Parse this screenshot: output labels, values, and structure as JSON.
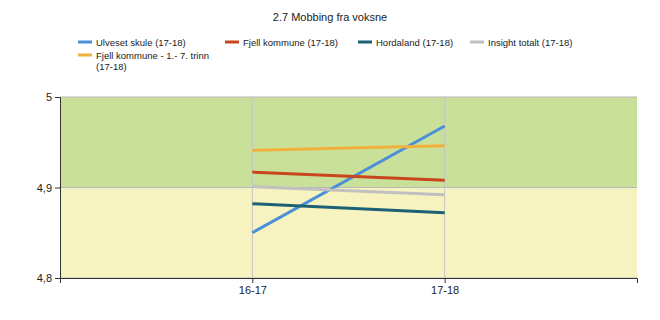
{
  "chart_data": {
    "type": "line",
    "title": "2.7 Mobbing fra voksne",
    "categories": [
      "16-17",
      "17-18"
    ],
    "series": [
      {
        "name": "Ulveset skule (17-18)",
        "color": "#4a90d9",
        "values": [
          4.85,
          4.968
        ]
      },
      {
        "name": "Fjell kommune (17-18)",
        "color": "#c8461e",
        "values": [
          4.917,
          4.908
        ]
      },
      {
        "name": "Hordaland (17-18)",
        "color": "#1d5f73",
        "values": [
          4.882,
          4.872
        ]
      },
      {
        "name": "Insight totalt (17-18)",
        "color": "#c0c0c0",
        "values": [
          4.901,
          4.892
        ]
      },
      {
        "name": "Fjell kommune - 1.- 7. trinn (17-18)",
        "color": "#f0b13c",
        "values": [
          4.941,
          4.946
        ]
      }
    ],
    "ylim": [
      4.8,
      5
    ],
    "yticks": [
      {
        "value": 4.8,
        "label": "4,8"
      },
      {
        "value": 4.9,
        "label": "4,9"
      },
      5
    ],
    "grid": true
  }
}
